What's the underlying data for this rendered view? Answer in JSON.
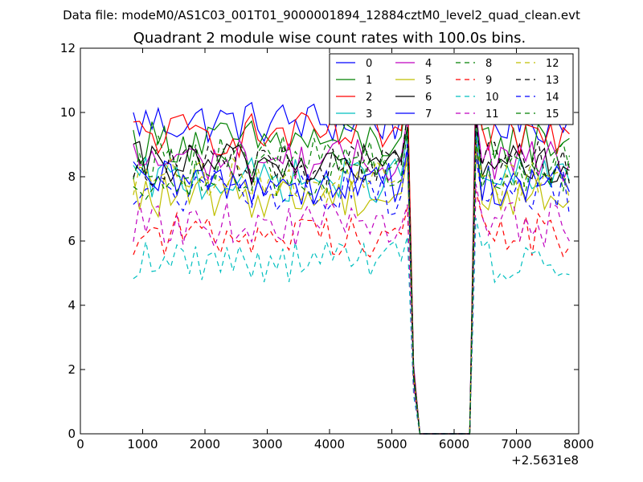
{
  "figure": {
    "suptitle": "Data file: modeM0/AS1C03_001T01_9000001894_12884cztM0_level2_quad_clean.evt",
    "x_offset_label": "+2.5631e8"
  },
  "chart_data": {
    "type": "line",
    "title": "Quadrant 2 module wise count rates with 100.0s bins.",
    "xlabel": "",
    "ylabel": "",
    "xlim": [
      0,
      8000
    ],
    "ylim": [
      0,
      12
    ],
    "x_offset": 256310000,
    "xticks": [
      0,
      1000,
      2000,
      3000,
      4000,
      5000,
      6000,
      7000,
      8000
    ],
    "yticks": [
      0,
      2,
      4,
      6,
      8,
      10,
      12
    ],
    "grid": false,
    "legend": {
      "placement": "top-right",
      "columns": 4
    },
    "x": [
      850,
      950,
      1050,
      1150,
      1250,
      1350,
      1450,
      1550,
      1650,
      1750,
      1850,
      1950,
      2050,
      2150,
      2250,
      2350,
      2450,
      2550,
      2650,
      2750,
      2850,
      2950,
      3050,
      3150,
      3250,
      3350,
      3450,
      3550,
      3650,
      3750,
      3850,
      3950,
      4050,
      4150,
      4250,
      4350,
      4450,
      4550,
      4650,
      4750,
      4850,
      4950,
      5050,
      5150,
      5250,
      5350,
      5450,
      5550,
      5650,
      5750,
      5850,
      5950,
      6050,
      6150,
      6250,
      6350,
      6450,
      6550,
      6650,
      6750,
      6850,
      6950,
      7050,
      7150,
      7250,
      7350,
      7450,
      7550,
      7650,
      7750,
      7850
    ],
    "series": [
      {
        "name": "0",
        "color": "#0000ff",
        "dash": "solid",
        "level": 9.7
      },
      {
        "name": "1",
        "color": "#008000",
        "dash": "solid",
        "level": 9.1
      },
      {
        "name": "2",
        "color": "#ff0000",
        "dash": "solid",
        "level": 9.3
      },
      {
        "name": "3",
        "color": "#00bfbf",
        "dash": "solid",
        "level": 7.9
      },
      {
        "name": "4",
        "color": "#bf00bf",
        "dash": "solid",
        "level": 8.5
      },
      {
        "name": "5",
        "color": "#bfbf00",
        "dash": "solid",
        "level": 7.4
      },
      {
        "name": "6",
        "color": "#000000",
        "dash": "solid",
        "level": 8.4
      },
      {
        "name": "7",
        "color": "#0000ff",
        "dash": "solid",
        "level": 7.8
      },
      {
        "name": "8",
        "color": "#008000",
        "dash": "dashed",
        "level": 8.6
      },
      {
        "name": "9",
        "color": "#ff0000",
        "dash": "dashed",
        "level": 6.2
      },
      {
        "name": "10",
        "color": "#00bfbf",
        "dash": "dashed",
        "level": 5.4
      },
      {
        "name": "11",
        "color": "#bf00bf",
        "dash": "dashed",
        "level": 6.5
      },
      {
        "name": "12",
        "color": "#bfbf00",
        "dash": "dashed",
        "level": 7.9
      },
      {
        "name": "13",
        "color": "#000000",
        "dash": "dashed",
        "level": 8.4
      },
      {
        "name": "14",
        "color": "#0000ff",
        "dash": "dashed",
        "level": 7.5
      },
      {
        "name": "15",
        "color": "#008000",
        "dash": "dashed",
        "level": 8.0
      }
    ],
    "gap": {
      "drop_start": 5250,
      "zero_from": 5450,
      "zero_to": 6250,
      "rise_end": 6350
    }
  }
}
